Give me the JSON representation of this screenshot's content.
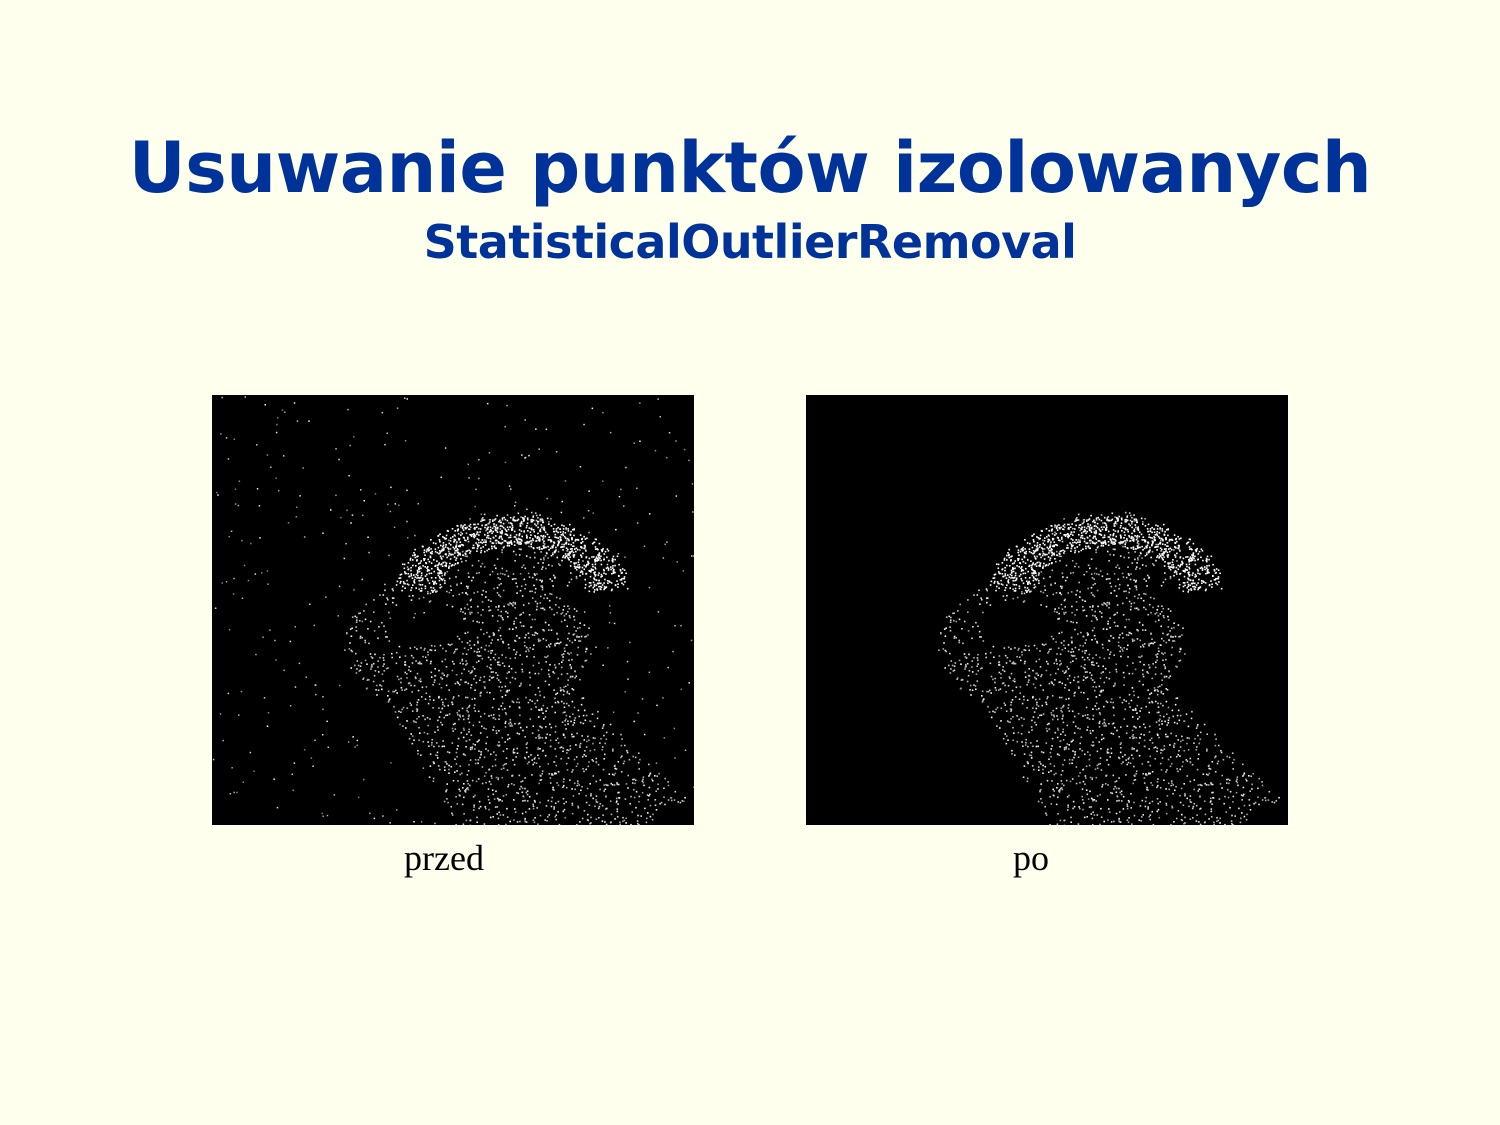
{
  "slide": {
    "title": "Usuwanie punktów izolowanych",
    "subtitle": "StatisticalOutlierRemoval",
    "background_color": "#FFFFEE",
    "title_color": "#003399",
    "images": [
      {
        "caption": "przed",
        "has_outliers": true
      },
      {
        "caption": "po",
        "has_outliers": false
      }
    ]
  }
}
